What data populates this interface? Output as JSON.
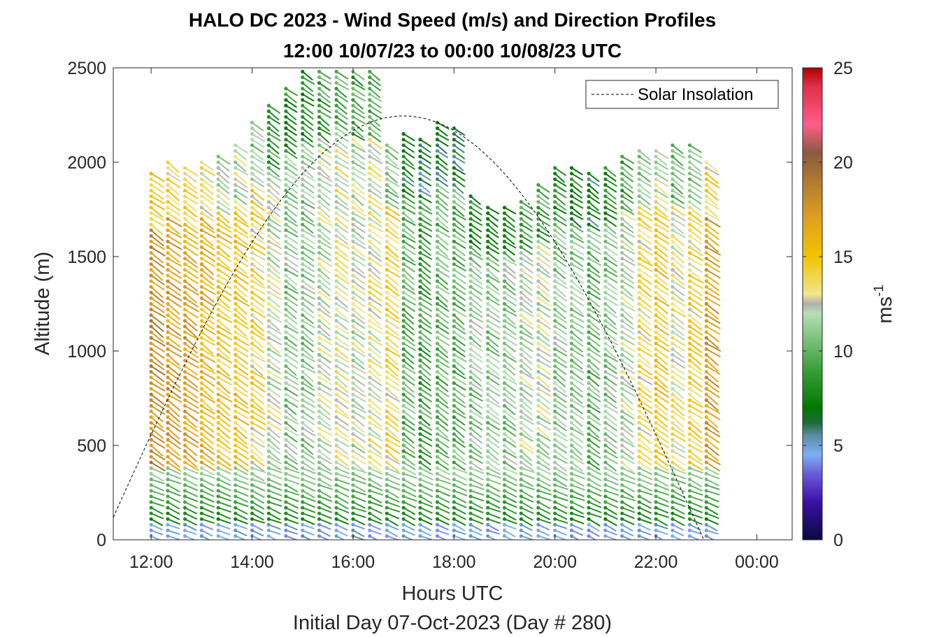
{
  "chart_data": {
    "type": "scatter",
    "title_line1": "HALO DC 2023 - Wind Speed (m/s) and Direction Profiles",
    "title_line2": "12:00 10/07/23 to 00:00 10/08/23  UTC",
    "xlabel": "Hours UTC",
    "xlabel2": "Initial Day 07-Oct-2023 (Day # 280)",
    "ylabel": "Altitude (m)",
    "x_ticks": [
      "12:00",
      "14:00",
      "16:00",
      "18:00",
      "20:00",
      "22:00",
      "00:00"
    ],
    "y_ticks": [
      "0",
      "500",
      "1000",
      "1500",
      "2000",
      "2500"
    ],
    "xlim_hours": [
      11.25,
      24.7
    ],
    "ylim": [
      0,
      2500
    ],
    "colorbar": {
      "label": "ms-1",
      "ticks": [
        "0",
        "5",
        "10",
        "15",
        "20",
        "25"
      ],
      "range": [
        0,
        25
      ],
      "stops": [
        [
          0,
          "#0a0a3c"
        ],
        [
          2,
          "#3b0fa8"
        ],
        [
          3.5,
          "#6a5cd8"
        ],
        [
          4.5,
          "#7eb0f5"
        ],
        [
          5.5,
          "#5a8fa8"
        ],
        [
          6.2,
          "#1f6b3a"
        ],
        [
          7,
          "#007a00"
        ],
        [
          9,
          "#3a9e3a"
        ],
        [
          11,
          "#8cc98c"
        ],
        [
          12,
          "#b5dfb5"
        ],
        [
          12.5,
          "#b0b0b0"
        ],
        [
          13,
          "#f0e68c"
        ],
        [
          15,
          "#f2c400"
        ],
        [
          17,
          "#e0a020"
        ],
        [
          19,
          "#b07a30"
        ],
        [
          20.5,
          "#8a5a40"
        ],
        [
          22,
          "#ff5c8a"
        ],
        [
          24,
          "#e0304a"
        ],
        [
          25,
          "#b00000"
        ]
      ]
    },
    "legend": {
      "label": "Solar Insolation",
      "placement": "top-right"
    },
    "solar_insolation_peak": {
      "hour": 17.0,
      "altitude": 2245
    },
    "profiles": [
      {
        "hour": 12.0,
        "top": 1960,
        "speed_ref": 18
      },
      {
        "hour": 12.33,
        "top": 2000,
        "speed_ref": 17
      },
      {
        "hour": 12.67,
        "top": 1990,
        "speed_ref": 17
      },
      {
        "hour": 13.0,
        "top": 2000,
        "speed_ref": 16
      },
      {
        "hour": 13.33,
        "top": 2040,
        "speed_ref": 15
      },
      {
        "hour": 13.67,
        "top": 2090,
        "speed_ref": 15
      },
      {
        "hour": 14.0,
        "top": 2230,
        "speed_ref": 14
      },
      {
        "hour": 14.33,
        "top": 2300,
        "speed_ref": 12
      },
      {
        "hour": 14.67,
        "top": 2410,
        "speed_ref": 11
      },
      {
        "hour": 15.0,
        "top": 2490,
        "speed_ref": 11
      },
      {
        "hour": 15.33,
        "top": 2500,
        "speed_ref": 12
      },
      {
        "hour": 15.67,
        "top": 2500,
        "speed_ref": 13
      },
      {
        "hour": 16.0,
        "top": 2500,
        "speed_ref": 12
      },
      {
        "hour": 16.33,
        "top": 2500,
        "speed_ref": 13
      },
      {
        "hour": 16.67,
        "top": 2100,
        "speed_ref": 14
      },
      {
        "hour": 17.0,
        "top": 2170,
        "speed_ref": 10
      },
      {
        "hour": 17.33,
        "top": 2130,
        "speed_ref": 9
      },
      {
        "hour": 17.67,
        "top": 2230,
        "speed_ref": 10
      },
      {
        "hour": 18.0,
        "top": 2190,
        "speed_ref": 10
      },
      {
        "hour": 18.33,
        "top": 1830,
        "speed_ref": 11
      },
      {
        "hour": 18.67,
        "top": 1780,
        "speed_ref": 11
      },
      {
        "hour": 19.0,
        "top": 1780,
        "speed_ref": 11
      },
      {
        "hour": 19.33,
        "top": 1800,
        "speed_ref": 12
      },
      {
        "hour": 19.67,
        "top": 1890,
        "speed_ref": 12
      },
      {
        "hour": 20.0,
        "top": 1990,
        "speed_ref": 11
      },
      {
        "hour": 20.33,
        "top": 1990,
        "speed_ref": 11
      },
      {
        "hour": 20.67,
        "top": 1960,
        "speed_ref": 10
      },
      {
        "hour": 21.0,
        "top": 1990,
        "speed_ref": 11
      },
      {
        "hour": 21.33,
        "top": 2050,
        "speed_ref": 12
      },
      {
        "hour": 21.67,
        "top": 2080,
        "speed_ref": 14
      },
      {
        "hour": 22.0,
        "top": 2080,
        "speed_ref": 15
      },
      {
        "hour": 22.33,
        "top": 2090,
        "speed_ref": 13
      },
      {
        "hour": 22.67,
        "top": 2090,
        "speed_ref": 14
      },
      {
        "hour": 23.0,
        "top": 2000,
        "speed_ref": 17
      }
    ]
  }
}
